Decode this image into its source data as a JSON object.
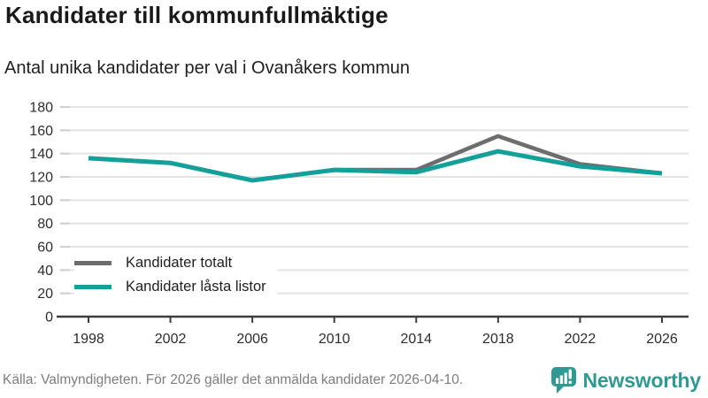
{
  "chart_data": {
    "type": "line",
    "title": "Kandidater till kommunfullmäktige",
    "subtitle": "Antal unika kandidater per val i Ovanåkers kommun",
    "categories": [
      "1998",
      "2002",
      "2006",
      "2010",
      "2014",
      "2018",
      "2022",
      "2026"
    ],
    "series": [
      {
        "name": "Kandidater totalt",
        "color": "#6d6d70",
        "values": [
          136,
          132,
          117,
          126,
          126,
          155,
          131,
          123
        ]
      },
      {
        "name": "Kandidater låsta listor",
        "color": "#12a098",
        "values": [
          136,
          132,
          117,
          126,
          124,
          142,
          129,
          123
        ]
      }
    ],
    "xlabel": "",
    "ylabel": "",
    "ylim": [
      0,
      180
    ],
    "yticks": [
      0,
      20,
      40,
      60,
      80,
      100,
      120,
      140,
      160,
      180
    ],
    "grid": true,
    "legend_position": "inside-bottom-left"
  },
  "footer": {
    "source": "Källa: Valmyndigheten. För 2026 gäller det anmälda kandidater 2026-04-10.",
    "brand": "Newsworthy",
    "brand_color": "#2f9a93",
    "logo_icon": "bar-chart-speech-bubble-icon"
  },
  "style": {
    "grid_color": "#e4e4e4",
    "tick_stub_color": "#cfcfcf",
    "axis_color": "#3d3d3d",
    "label_color": "#2d2d2d"
  }
}
